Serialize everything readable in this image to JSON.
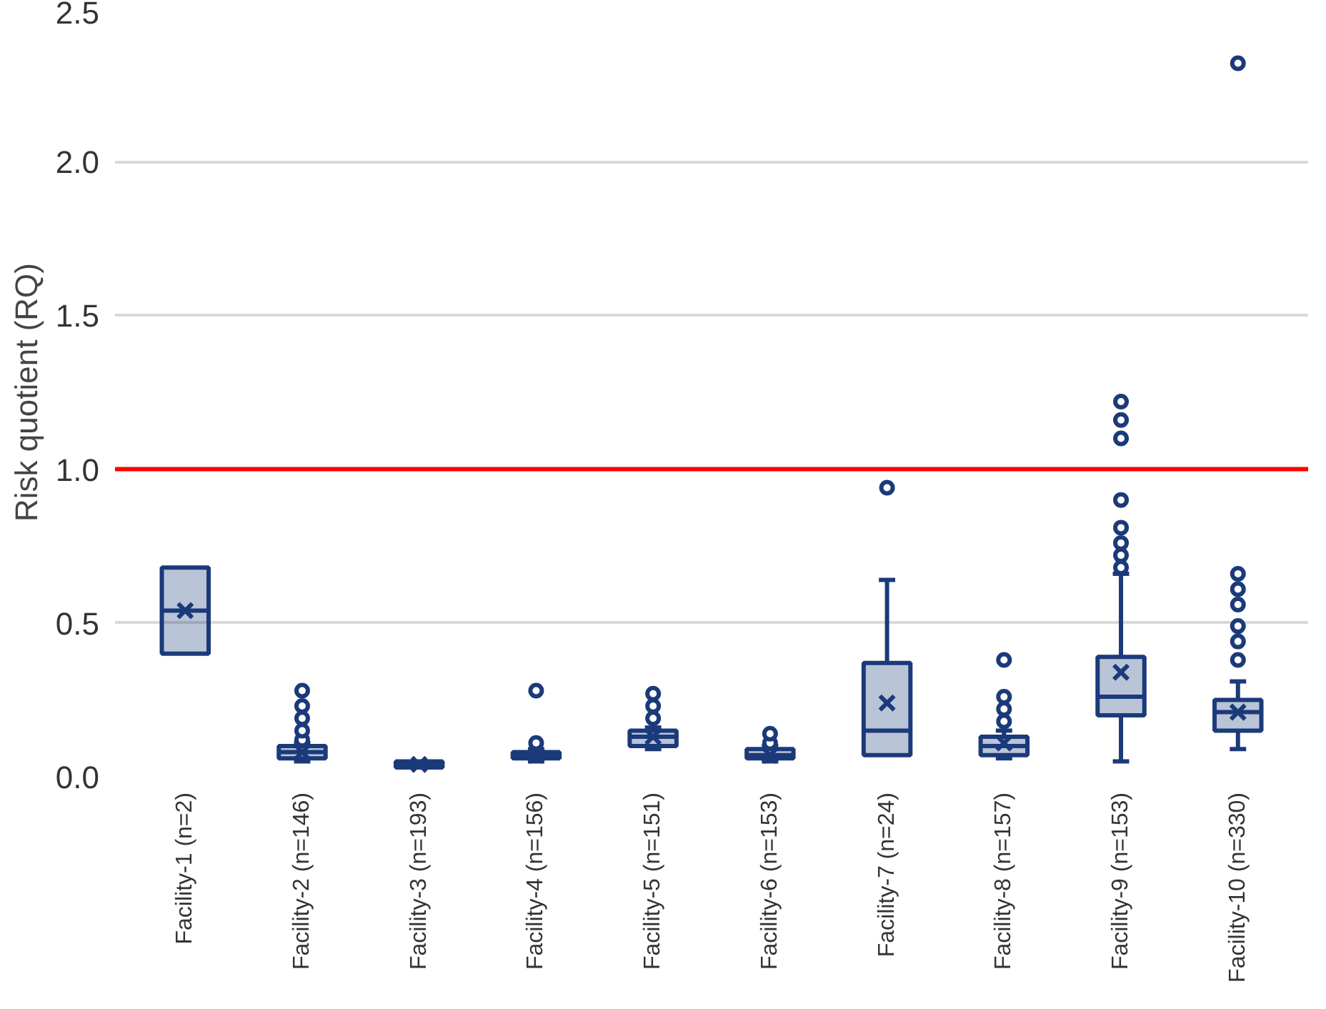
{
  "chart_data": {
    "type": "box",
    "ylabel": "Risk quotient (RQ)",
    "categories": [
      "Facility-1 (n=2)",
      "Facility-2 (n=146)",
      "Facility-3 (n=193)",
      "Facility-4 (n=156)",
      "Facility-5 (n=151)",
      "Facility-6 (n=153)",
      "Facility-7 (n=24)",
      "Facility-8 (n=157)",
      "Facility-9 (n=153)",
      "Facility-10 (n=330)"
    ],
    "ylim": [
      0,
      2.5
    ],
    "yticks": [
      {
        "value": 0,
        "label": "0.0"
      },
      {
        "value": 0.5,
        "label": "0.5"
      },
      {
        "value": 1,
        "label": "1.0"
      },
      {
        "value": 1.5,
        "label": "1.5"
      },
      {
        "value": 2,
        "label": "2.0"
      },
      {
        "value": 2.5,
        "label": "2.5"
      }
    ],
    "grid": "y",
    "marker": "circle",
    "ref_lines": [
      {
        "axis": "y",
        "value": 1,
        "color": "#ff0000"
      }
    ],
    "series": [
      {
        "color": "#1b3a7a",
        "boxes": [
          {
            "low": 0.4,
            "q1": 0.4,
            "median": 0.54,
            "q3": 0.68,
            "high": 0.68,
            "mean": 0.54
          },
          {
            "low": 0.05,
            "q1": 0.06,
            "median": 0.08,
            "q3": 0.1,
            "high": 0.11,
            "mean": 0.08,
            "outliers": [
              0.12,
              0.15,
              0.19,
              0.23,
              0.28
            ]
          },
          {
            "low": 0.03,
            "q1": 0.03,
            "median": 0.04,
            "q3": 0.05,
            "high": 0.05,
            "mean": 0.04
          },
          {
            "low": 0.05,
            "q1": 0.06,
            "median": 0.07,
            "q3": 0.08,
            "high": 0.09,
            "mean": 0.07,
            "outliers": [
              0.11,
              0.28
            ]
          },
          {
            "low": 0.09,
            "q1": 0.1,
            "median": 0.13,
            "q3": 0.15,
            "high": 0.16,
            "mean": 0.13,
            "outliers": [
              0.19,
              0.23,
              0.27
            ]
          },
          {
            "low": 0.05,
            "q1": 0.06,
            "median": 0.07,
            "q3": 0.09,
            "high": 0.1,
            "mean": 0.07,
            "outliers": [
              0.11,
              0.14
            ]
          },
          {
            "low": 0.07,
            "q1": 0.07,
            "median": 0.15,
            "q3": 0.37,
            "high": 0.64,
            "mean": 0.24,
            "outliers": [
              0.94
            ]
          },
          {
            "low": 0.06,
            "q1": 0.07,
            "median": 0.1,
            "q3": 0.13,
            "high": 0.15,
            "mean": 0.11,
            "outliers": [
              0.18,
              0.22,
              0.26,
              0.38
            ]
          },
          {
            "low": 0.05,
            "q1": 0.2,
            "median": 0.26,
            "q3": 0.39,
            "high": 0.66,
            "mean": 0.34,
            "outliers": [
              0.68,
              0.72,
              0.76,
              0.81,
              0.9,
              1.1,
              1.16,
              1.22
            ]
          },
          {
            "low": 0.09,
            "q1": 0.15,
            "median": 0.21,
            "q3": 0.25,
            "high": 0.31,
            "mean": 0.21,
            "outliers": [
              0.38,
              0.44,
              0.49,
              0.56,
              0.61,
              0.66,
              2.32
            ]
          }
        ]
      }
    ]
  }
}
